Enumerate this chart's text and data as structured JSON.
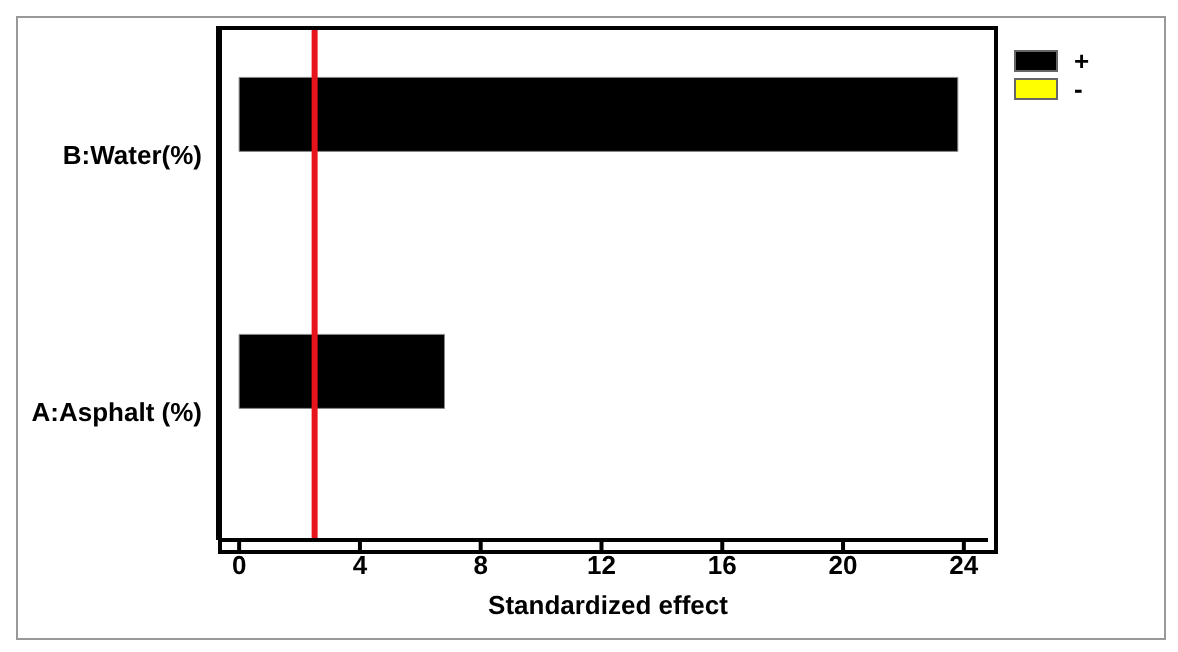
{
  "chart_data": {
    "type": "bar",
    "orientation": "horizontal",
    "xlabel": "Standardized effect",
    "categories": [
      "B:Water(%)",
      "A:Asphalt (%)"
    ],
    "series": [
      {
        "name": "+",
        "color": "#000000",
        "values": [
          23.8,
          6.8
        ]
      },
      {
        "name": "-",
        "color": "#ffff00",
        "values": [
          null,
          null
        ]
      }
    ],
    "xlim": [
      -0.7,
      24.8
    ],
    "xticks": [
      0,
      4,
      8,
      12,
      16,
      20,
      24
    ],
    "grid": false,
    "legend": "top right",
    "ref_lines": [
      {
        "axis": "x",
        "value": 2.5,
        "color": "#e8141c"
      }
    ]
  }
}
